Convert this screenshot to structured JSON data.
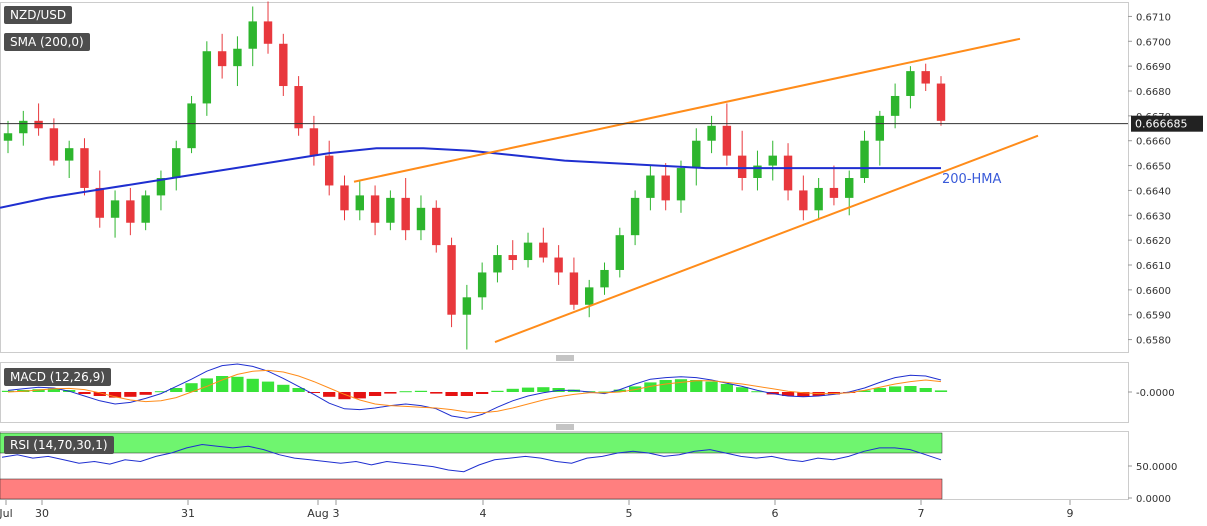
{
  "indicators": {
    "symbol": "NZD/USD",
    "sma": "SMA (200,0)",
    "macd": "MACD (12,26,9)",
    "rsi": "RSI (14,70,30,1)"
  },
  "colors": {
    "up": "#2db52d",
    "down": "#e8383d",
    "sma": "#1f2fd0",
    "trend": "#ff8c1a",
    "macd_line": "#1f2fd0",
    "signal_line": "#ff8c1a",
    "hist_pos": "#39e339",
    "hist_neg": "#e51212",
    "rsi_line": "#1f2fd0",
    "overbought": "#6ff56f",
    "oversold": "#ff7f7f"
  },
  "chart_data": [
    {
      "type": "candlestick",
      "title": "NZD/USD",
      "ylim": [
        0.6575,
        0.6715
      ],
      "y_ticks": [
        "0.6710",
        "0.6700",
        "0.6690",
        "0.6680",
        "0.6670",
        "0.6660",
        "0.6650",
        "0.6640",
        "0.6630",
        "0.6620",
        "0.6610",
        "0.6600",
        "0.6590",
        "0.6580"
      ],
      "x_ticks": [
        "Jul",
        "30",
        "31",
        "Aug",
        "3",
        "4",
        "5",
        "6",
        "7",
        "9"
      ],
      "current_price": "0.666685",
      "annotation": "200-HMA",
      "sma_200": [
        0.6633,
        0.6637,
        0.664,
        0.6643,
        0.6646,
        0.6649,
        0.6652,
        0.6655,
        0.6657,
        0.6657,
        0.6656,
        0.6654,
        0.6652,
        0.6651,
        0.665,
        0.6649,
        0.6649,
        0.6649,
        0.6649,
        0.6649,
        0.6649
      ],
      "ohlc": [
        [
          0.666,
          0.6668,
          0.6655,
          0.6663
        ],
        [
          0.6663,
          0.6672,
          0.6658,
          0.6668
        ],
        [
          0.6668,
          0.6675,
          0.6662,
          0.6665
        ],
        [
          0.6665,
          0.6669,
          0.665,
          0.6652
        ],
        [
          0.6652,
          0.666,
          0.6645,
          0.6657
        ],
        [
          0.6657,
          0.6661,
          0.6638,
          0.6641
        ],
        [
          0.6641,
          0.6648,
          0.6625,
          0.6629
        ],
        [
          0.6629,
          0.664,
          0.6621,
          0.6636
        ],
        [
          0.6636,
          0.6641,
          0.6622,
          0.6627
        ],
        [
          0.6627,
          0.664,
          0.6624,
          0.6638
        ],
        [
          0.6638,
          0.6648,
          0.6632,
          0.6645
        ],
        [
          0.6645,
          0.666,
          0.664,
          0.6657
        ],
        [
          0.6657,
          0.6678,
          0.6655,
          0.6675
        ],
        [
          0.6675,
          0.67,
          0.667,
          0.6696
        ],
        [
          0.6696,
          0.6703,
          0.6685,
          0.669
        ],
        [
          0.669,
          0.6702,
          0.6682,
          0.6697
        ],
        [
          0.6697,
          0.6714,
          0.669,
          0.6708
        ],
        [
          0.6708,
          0.6716,
          0.6695,
          0.6699
        ],
        [
          0.6699,
          0.6703,
          0.6678,
          0.6682
        ],
        [
          0.6682,
          0.6686,
          0.6662,
          0.6665
        ],
        [
          0.6665,
          0.667,
          0.665,
          0.6654
        ],
        [
          0.6654,
          0.666,
          0.6638,
          0.6642
        ],
        [
          0.6642,
          0.6646,
          0.6628,
          0.6632
        ],
        [
          0.6632,
          0.6644,
          0.6628,
          0.6638
        ],
        [
          0.6638,
          0.6642,
          0.6622,
          0.6627
        ],
        [
          0.6627,
          0.664,
          0.6624,
          0.6637
        ],
        [
          0.6637,
          0.6645,
          0.662,
          0.6624
        ],
        [
          0.6624,
          0.6638,
          0.662,
          0.6633
        ],
        [
          0.6633,
          0.6636,
          0.6615,
          0.6618
        ],
        [
          0.6618,
          0.6621,
          0.6585,
          0.659
        ],
        [
          0.659,
          0.6602,
          0.6576,
          0.6597
        ],
        [
          0.6597,
          0.6611,
          0.6592,
          0.6607
        ],
        [
          0.6607,
          0.6618,
          0.6603,
          0.6614
        ],
        [
          0.6614,
          0.662,
          0.6608,
          0.6612
        ],
        [
          0.6612,
          0.6623,
          0.6609,
          0.6619
        ],
        [
          0.6619,
          0.6625,
          0.6611,
          0.6613
        ],
        [
          0.6613,
          0.6618,
          0.6602,
          0.6607
        ],
        [
          0.6607,
          0.6613,
          0.6592,
          0.6594
        ],
        [
          0.6594,
          0.6604,
          0.6589,
          0.6601
        ],
        [
          0.6601,
          0.6611,
          0.6598,
          0.6608
        ],
        [
          0.6608,
          0.6625,
          0.6605,
          0.6622
        ],
        [
          0.6622,
          0.664,
          0.6618,
          0.6637
        ],
        [
          0.6637,
          0.665,
          0.6632,
          0.6646
        ],
        [
          0.6646,
          0.6651,
          0.6632,
          0.6636
        ],
        [
          0.6636,
          0.6652,
          0.6631,
          0.6649
        ],
        [
          0.6649,
          0.6665,
          0.6642,
          0.666
        ],
        [
          0.666,
          0.667,
          0.6655,
          0.6666
        ],
        [
          0.6666,
          0.6675,
          0.665,
          0.6654
        ],
        [
          0.6654,
          0.6664,
          0.664,
          0.6645
        ],
        [
          0.6645,
          0.6656,
          0.664,
          0.665
        ],
        [
          0.665,
          0.666,
          0.6644,
          0.6654
        ],
        [
          0.6654,
          0.6659,
          0.6636,
          0.664
        ],
        [
          0.664,
          0.6646,
          0.6628,
          0.6632
        ],
        [
          0.6632,
          0.6645,
          0.6628,
          0.6641
        ],
        [
          0.6641,
          0.665,
          0.6634,
          0.6637
        ],
        [
          0.6637,
          0.6648,
          0.663,
          0.6645
        ],
        [
          0.6645,
          0.6664,
          0.6643,
          0.666
        ],
        [
          0.666,
          0.6672,
          0.665,
          0.667
        ],
        [
          0.667,
          0.6683,
          0.6665,
          0.6678
        ],
        [
          0.6678,
          0.669,
          0.6673,
          0.6688
        ],
        [
          0.6688,
          0.6691,
          0.668,
          0.6683
        ],
        [
          0.6683,
          0.6686,
          0.6666,
          0.6668
        ]
      ]
    },
    {
      "type": "line",
      "title": "MACD (12,26,9)",
      "y_ticks": [
        "-0.0000"
      ],
      "series": [],
      "histogram": [
        0.03,
        0.05,
        0.07,
        0.09,
        0.05,
        -0.05,
        -0.1,
        -0.14,
        -0.12,
        -0.07,
        0.02,
        0.1,
        0.22,
        0.34,
        0.4,
        0.38,
        0.33,
        0.26,
        0.18,
        0.1,
        -0.02,
        -0.12,
        -0.18,
        -0.16,
        -0.1,
        -0.04,
        0.02,
        0.03,
        -0.04,
        -0.1,
        -0.1,
        -0.05,
        0.03,
        0.08,
        0.11,
        0.12,
        0.1,
        0.06,
        0.02,
        0.01,
        0.06,
        0.14,
        0.24,
        0.3,
        0.32,
        0.3,
        0.26,
        0.2,
        0.12,
        0.02,
        -0.06,
        -0.1,
        -0.12,
        -0.1,
        -0.06,
        -0.02,
        0.04,
        0.1,
        0.14,
        0.15,
        0.1,
        0.04
      ],
      "macd": [
        0.04,
        0.08,
        0.12,
        0.1,
        0.02,
        -0.1,
        -0.22,
        -0.3,
        -0.26,
        -0.16,
        -0.04,
        0.14,
        0.32,
        0.52,
        0.66,
        0.7,
        0.64,
        0.52,
        0.34,
        0.14,
        -0.06,
        -0.28,
        -0.42,
        -0.44,
        -0.4,
        -0.34,
        -0.3,
        -0.34,
        -0.42,
        -0.6,
        -0.66,
        -0.56,
        -0.38,
        -0.22,
        -0.1,
        -0.02,
        0.04,
        0.04,
        0.0,
        -0.04,
        0.06,
        0.2,
        0.32,
        0.36,
        0.38,
        0.36,
        0.3,
        0.22,
        0.14,
        0.04,
        -0.04,
        -0.1,
        -0.12,
        -0.1,
        -0.06,
        0.0,
        0.1,
        0.24,
        0.36,
        0.42,
        0.4,
        0.3
      ],
      "signal": [
        0.0,
        0.02,
        0.05,
        0.08,
        0.09,
        0.06,
        -0.02,
        -0.12,
        -0.2,
        -0.24,
        -0.22,
        -0.14,
        0.0,
        0.14,
        0.3,
        0.44,
        0.52,
        0.54,
        0.5,
        0.4,
        0.26,
        0.1,
        -0.06,
        -0.2,
        -0.3,
        -0.34,
        -0.36,
        -0.38,
        -0.4,
        -0.44,
        -0.5,
        -0.52,
        -0.48,
        -0.4,
        -0.3,
        -0.2,
        -0.12,
        -0.06,
        -0.02,
        -0.02,
        0.0,
        0.06,
        0.14,
        0.2,
        0.24,
        0.28,
        0.28,
        0.24,
        0.2,
        0.14,
        0.08,
        0.02,
        -0.02,
        -0.04,
        -0.04,
        -0.02,
        0.04,
        0.12,
        0.2,
        0.26,
        0.3,
        0.26
      ]
    },
    {
      "type": "line",
      "title": "RSI (14,70,30,1)",
      "y_ticks": [
        "50.0000",
        "0.0000"
      ],
      "series": [],
      "levels": [
        70,
        30
      ],
      "values": [
        55,
        58,
        54,
        56,
        52,
        48,
        50,
        47,
        52,
        50,
        56,
        60,
        66,
        70,
        68,
        66,
        68,
        64,
        58,
        54,
        52,
        50,
        48,
        50,
        46,
        50,
        48,
        46,
        44,
        40,
        38,
        46,
        52,
        54,
        56,
        54,
        50,
        48,
        54,
        56,
        60,
        62,
        60,
        56,
        58,
        62,
        64,
        60,
        56,
        54,
        56,
        52,
        50,
        54,
        52,
        56,
        62,
        66,
        66,
        64,
        58,
        52
      ]
    }
  ]
}
